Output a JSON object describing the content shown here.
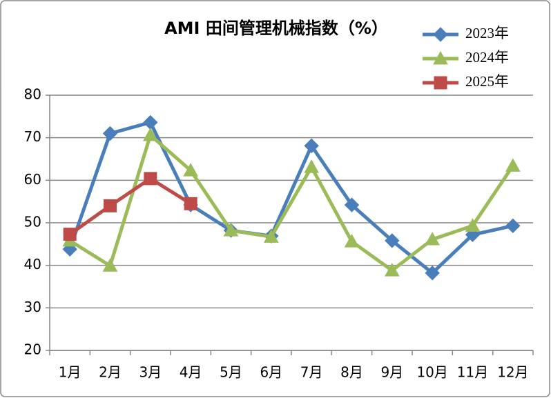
{
  "chart_data": {
    "type": "line",
    "title": "AMI 田间管理机械指数（%）",
    "categories": [
      "1月",
      "2月",
      "3月",
      "4月",
      "5月",
      "6月",
      "7月",
      "8月",
      "9月",
      "10月",
      "11月",
      "12月"
    ],
    "series": [
      {
        "name": "2023年",
        "color": "#4a7ebb",
        "marker": "diamond",
        "values": [
          43.8,
          71.0,
          73.6,
          54.2,
          48.2,
          46.9,
          68.1,
          54.2,
          45.8,
          38.2,
          47.2,
          49.3
        ]
      },
      {
        "name": "2024年",
        "color": "#9bbb59",
        "marker": "triangle",
        "values": [
          45.8,
          39.9,
          70.6,
          62.3,
          48.2,
          46.7,
          63.1,
          45.6,
          38.8,
          46.1,
          49.3,
          63.4
        ]
      },
      {
        "name": "2025年",
        "color": "#be4b48",
        "marker": "square",
        "values": [
          47.3,
          54.0,
          60.4,
          54.5,
          null,
          null,
          null,
          null,
          null,
          null,
          null,
          null
        ]
      }
    ],
    "ylim": [
      20,
      80
    ],
    "yticks": [
      20,
      30,
      40,
      50,
      60,
      70,
      80
    ],
    "grid": true,
    "legend": "top-right"
  }
}
